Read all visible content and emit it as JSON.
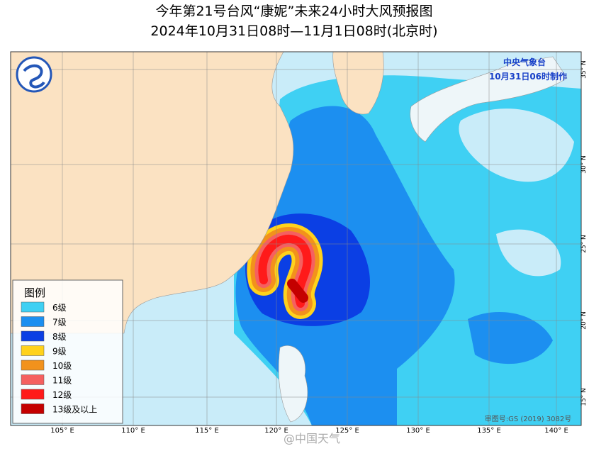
{
  "header": {
    "title": "今年第21号台风“康妮”未来24小时大风预报图",
    "subtitle": "2024年10月31日08时—11月1日08时(北京时)"
  },
  "issuer": {
    "name": "中央气象台",
    "time": "10月31日06时制作"
  },
  "legend": {
    "title": "图例",
    "items": [
      {
        "label": "6级",
        "color": "#3fd0f3"
      },
      {
        "label": "7级",
        "color": "#1c8ff0"
      },
      {
        "label": "8级",
        "color": "#0b3fe4"
      },
      {
        "label": "9级",
        "color": "#ffd21c"
      },
      {
        "label": "10级",
        "color": "#f2921c"
      },
      {
        "label": "11级",
        "color": "#f56060"
      },
      {
        "label": "12级",
        "color": "#ff1a1a"
      },
      {
        "label": "13级及以上",
        "color": "#c40000"
      }
    ]
  },
  "axes": {
    "lon_labels": [
      "105° E",
      "110° E",
      "115° E",
      "120° E",
      "125° E",
      "130° E",
      "135° E",
      "140° E"
    ],
    "lat_labels": [
      "35° N",
      "30° N",
      "25° N",
      "20° N",
      "15° N"
    ]
  },
  "map_approval": "审图号:GS (2019) 3082号",
  "watermark": "@中国天气"
}
